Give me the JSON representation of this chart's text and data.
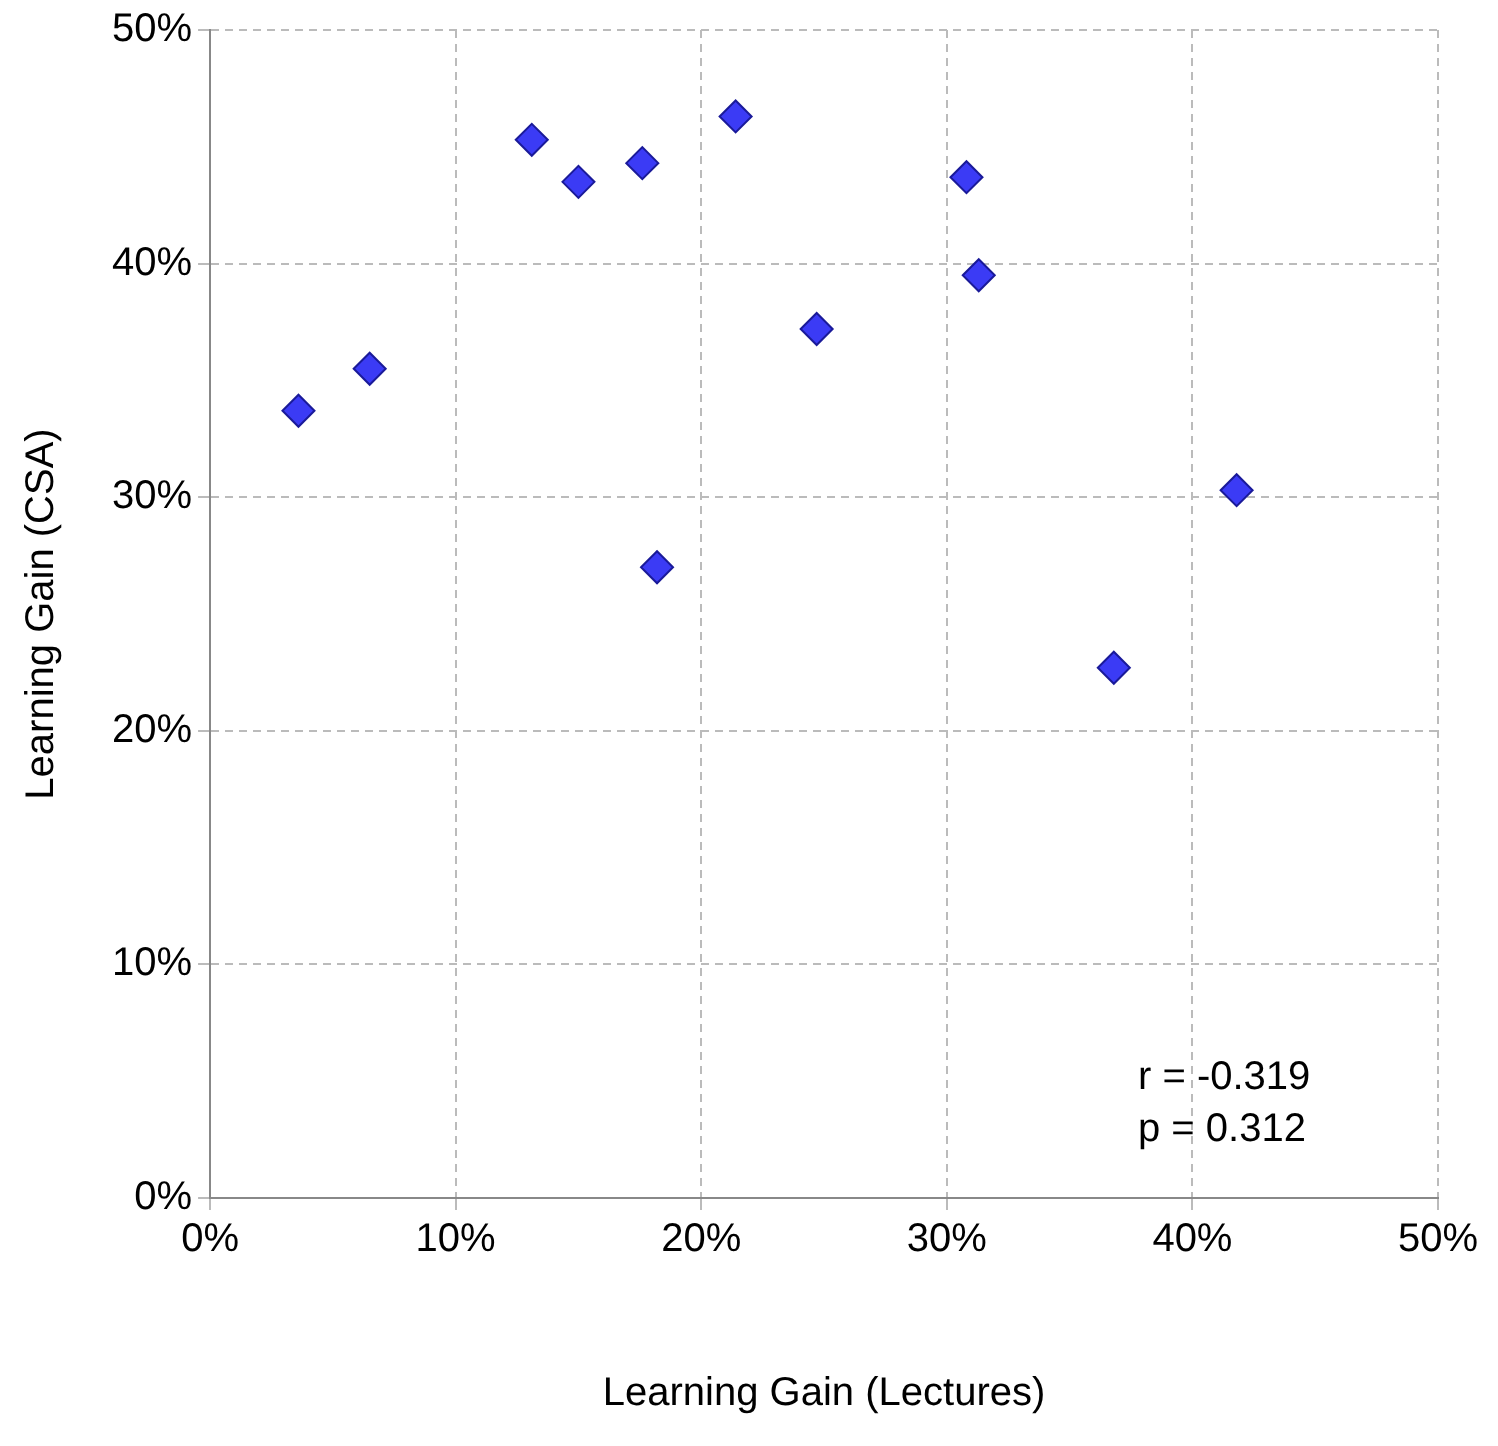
{
  "chart_data": {
    "type": "scatter",
    "xlabel": "Learning Gain (Lectures)",
    "ylabel": "Learning Gain (CSA)",
    "x": [
      3.6,
      6.5,
      13.1,
      15.0,
      17.6,
      18.2,
      21.4,
      24.7,
      30.8,
      31.3,
      36.8,
      41.8
    ],
    "series": [
      {
        "color": "#3b3bf5",
        "values": [
          33.7,
          35.5,
          45.3,
          43.5,
          44.3,
          27.0,
          46.3,
          37.2,
          43.7,
          39.5,
          22.7,
          30.3
        ]
      }
    ],
    "xlim": [
      0,
      50
    ],
    "xticks": [
      {
        "value": 0,
        "label": "0%"
      },
      {
        "value": 10,
        "label": "10%"
      },
      {
        "value": 20,
        "label": "20%"
      },
      {
        "value": 30,
        "label": "30%"
      },
      {
        "value": 40,
        "label": "40%"
      },
      {
        "value": 50,
        "label": "50%"
      }
    ],
    "ylim": [
      0,
      50
    ],
    "yticks": [
      {
        "value": 0,
        "label": "0%"
      },
      {
        "value": 10,
        "label": "10%"
      },
      {
        "value": 20,
        "label": "20%"
      },
      {
        "value": 30,
        "label": "30%"
      },
      {
        "value": 40,
        "label": "40%"
      },
      {
        "value": 50,
        "label": "50%"
      }
    ],
    "grid": true,
    "legend": false,
    "marker": "diamond",
    "annotations": [
      "r = -0.319",
      "p = 0.312"
    ]
  }
}
